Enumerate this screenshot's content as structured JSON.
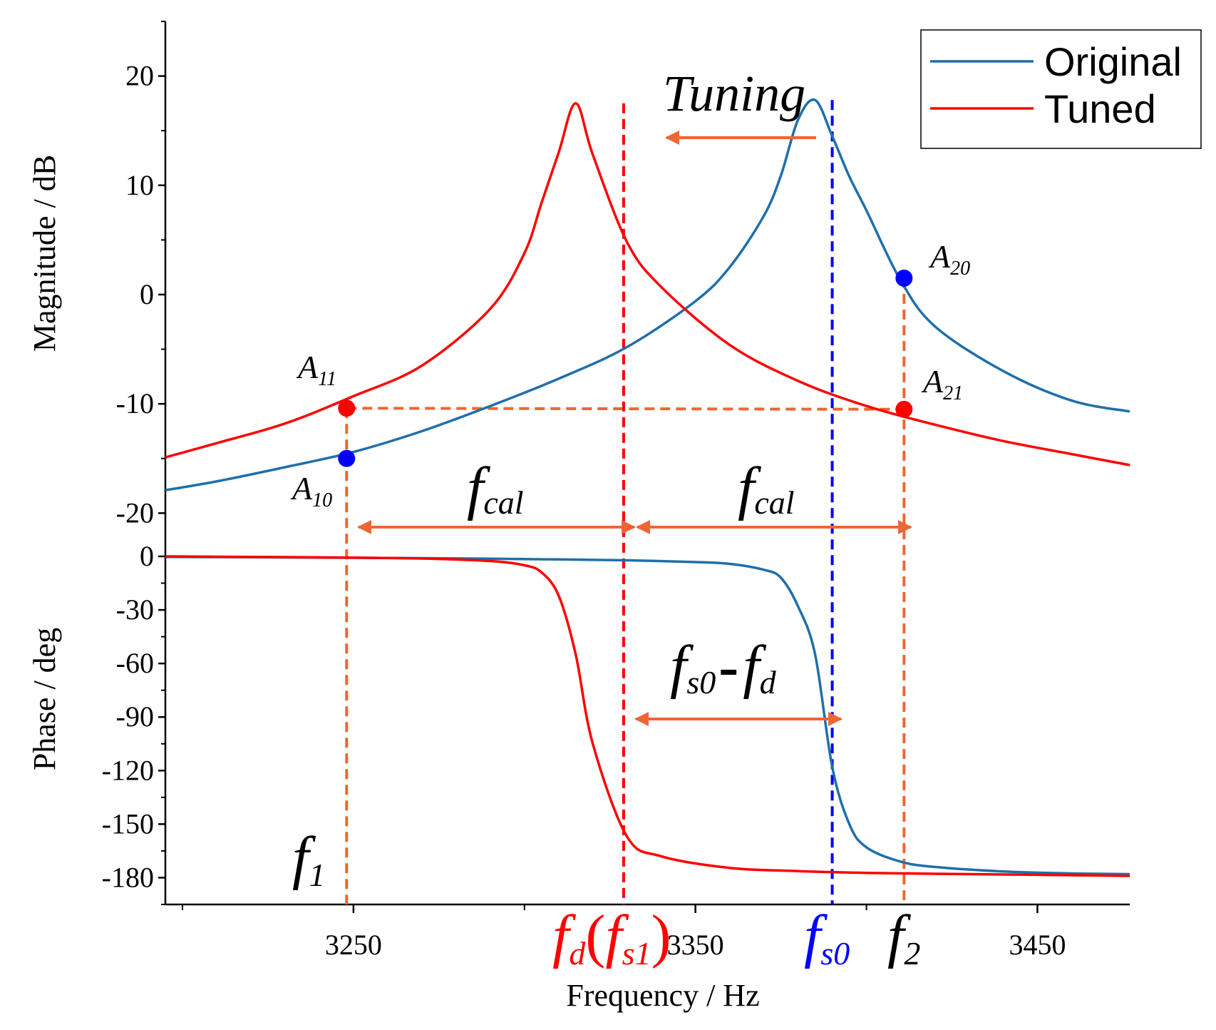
{
  "chart_data": {
    "type": "line",
    "title": "",
    "xlabel": "Frequency / Hz",
    "xlim": [
      3195,
      3477
    ],
    "xticks": [
      3250,
      3350,
      3450
    ],
    "xtick_labels": [
      "3250",
      "3350",
      "3450"
    ],
    "panels": [
      {
        "name": "magnitude",
        "ylabel": "Magnitude / dB",
        "ylim": [
          -22,
          25
        ],
        "yticks": [
          20,
          10,
          0,
          -10,
          -20
        ],
        "ytick_labels": [
          "20",
          "10",
          "0",
          "-10",
          "-20"
        ]
      },
      {
        "name": "phase",
        "ylabel": "Phase / deg",
        "ylim": [
          -195,
          0
        ],
        "yticks": [
          0,
          -30,
          -60,
          -90,
          -120,
          -150,
          -180
        ],
        "ytick_labels": [
          "0",
          "-30",
          "-60",
          "-90",
          "-120",
          "-150",
          "-180"
        ]
      }
    ],
    "series": [
      {
        "name": "Original",
        "color": "#1f6faa",
        "x": [
          3195,
          3210,
          3230,
          3250,
          3270,
          3290,
          3310,
          3330,
          3350,
          3360,
          3370,
          3375,
          3380,
          3385,
          3390,
          3395,
          3400,
          3410,
          3420,
          3440,
          3460,
          3477
        ],
        "magnitude_db": [
          -17.9,
          -17.1,
          -15.8,
          -14.4,
          -12.5,
          -10.2,
          -7.7,
          -4.8,
          -0.6,
          2.5,
          7.2,
          10.9,
          16.0,
          17.8,
          14.5,
          10.8,
          7.7,
          1.3,
          -2.9,
          -7.0,
          -9.7,
          -10.7
        ],
        "phase_deg": [
          -0.3,
          -0.4,
          -0.6,
          -0.8,
          -1.0,
          -1.3,
          -1.7,
          -2.2,
          -3.2,
          -4.2,
          -7.5,
          -12.0,
          -28.0,
          -55.0,
          -118.0,
          -150.0,
          -163.0,
          -171.0,
          -174.0,
          -176.5,
          -177.6,
          -178.0
        ]
      },
      {
        "name": "Tuned",
        "color": "#ff0000",
        "x": [
          3195,
          3210,
          3230,
          3250,
          3270,
          3290,
          3300,
          3305,
          3310,
          3315,
          3320,
          3330,
          3340,
          3360,
          3380,
          3400,
          3420,
          3440,
          3460,
          3477
        ],
        "magnitude_db": [
          -14.9,
          -13.6,
          -11.8,
          -9.3,
          -6.5,
          -1.3,
          3.8,
          8.4,
          13.0,
          17.5,
          12.8,
          4.8,
          0.7,
          -4.6,
          -7.9,
          -10.2,
          -11.9,
          -13.4,
          -14.6,
          -15.6
        ],
        "phase_deg": [
          0.0,
          -0.2,
          -0.4,
          -0.7,
          -1.2,
          -2.6,
          -5.0,
          -9.0,
          -22.0,
          -55.0,
          -105.0,
          -157.0,
          -168.0,
          -174.5,
          -176.3,
          -177.3,
          -177.8,
          -178.2,
          -178.6,
          -179.0
        ]
      }
    ],
    "legend": {
      "position": "top-right",
      "entries": [
        {
          "label": "Original",
          "color": "#1f6faa"
        },
        {
          "label": "Tuned",
          "color": "#ff0000"
        }
      ]
    },
    "points": [
      {
        "label": "A",
        "sub": "11",
        "x": 3248,
        "y": -10.4,
        "color": "#ff0000"
      },
      {
        "label": "A",
        "sub": "10",
        "x": 3248,
        "y": -15.0,
        "color": "#0000ff"
      },
      {
        "label": "A",
        "sub": "20",
        "x": 3411,
        "y": 1.5,
        "color": "#0000ff"
      },
      {
        "label": "A",
        "sub": "21",
        "x": 3411,
        "y": -10.5,
        "color": "#ff0000"
      }
    ],
    "markers": [
      {
        "name": "f1",
        "x": 3248,
        "color": "#ee6633"
      },
      {
        "name": "fd",
        "x": 3329,
        "color": "#ff0000"
      },
      {
        "name": "fs0",
        "x": 3390,
        "color": "#0000ff"
      },
      {
        "name": "f2",
        "x": 3411,
        "color": "#ee6633"
      }
    ],
    "annotations": {
      "tuning": "Tuning",
      "fcal_main": "f",
      "fcal_sub": "cal",
      "fsd_f1": "f",
      "fsd_sub1": "s0",
      "fsd_minus": "-",
      "fsd_f2": "f",
      "fsd_sub2": "d",
      "f1_main": "f",
      "f1_sub": "1",
      "fd_main": "f",
      "fd_sub": "d",
      "fd_paren_open": "(",
      "fd_inner": "f",
      "fd_inner_sub": "s1",
      "fd_paren_close": ")",
      "fs0_main": "f",
      "fs0_sub": "s0",
      "f2_main": "f",
      "f2_sub": "2"
    },
    "colors": {
      "orange": "#ee6633",
      "red": "#ff0000",
      "blue": "#0000ff",
      "original": "#1f6faa"
    }
  }
}
